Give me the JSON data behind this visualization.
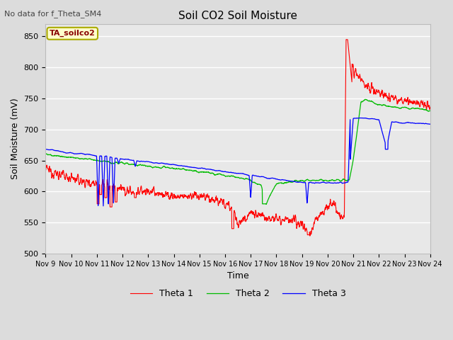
{
  "title": "Soil CO2 Soil Moisture",
  "xlabel": "Time",
  "ylabel": "Soil Moisture (mV)",
  "note": "No data for f_Theta_SM4",
  "sensor_label": "TA_soilco2",
  "ylim": [
    500,
    870
  ],
  "yticks": [
    500,
    550,
    600,
    650,
    700,
    750,
    800,
    850
  ],
  "xtick_labels": [
    "Nov 9",
    "Nov 10",
    "Nov 11",
    "Nov 12",
    "Nov 13",
    "Nov 14",
    "Nov 15",
    "Nov 16",
    "Nov 17",
    "Nov 18",
    "Nov 19",
    "Nov 20",
    "Nov 21",
    "Nov 22",
    "Nov 23",
    "Nov 24"
  ],
  "bg_color": "#dcdcdc",
  "plot_bg_color": "#e8e8e8",
  "grid_color": "#ffffff",
  "theta1_color": "#ff0000",
  "theta2_color": "#00bb00",
  "theta3_color": "#0000ff",
  "legend_entries": [
    "Theta 1",
    "Theta 2",
    "Theta 3"
  ],
  "figsize": [
    6.4,
    4.8
  ],
  "dpi": 100
}
